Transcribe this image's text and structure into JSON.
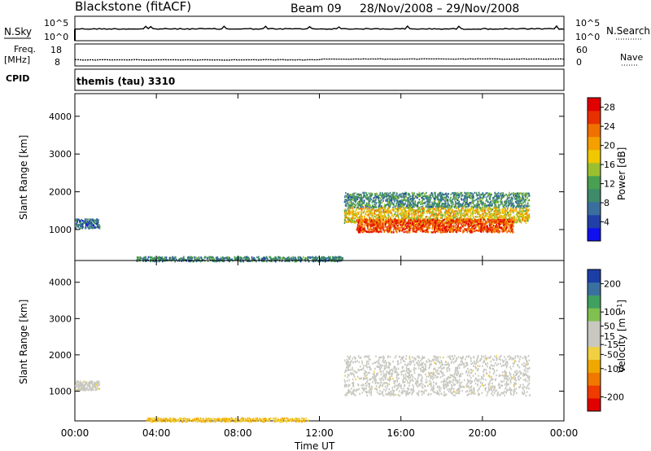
{
  "header": {
    "station": "Blackstone (fitACF)",
    "beam": "Beam 09",
    "date_range": "28/Nov/2008 – 29/Nov/2008"
  },
  "strips": {
    "nsky_label": "N.Sky",
    "nsky_top_tick": "10^5",
    "nsky_bottom_tick": "10^0",
    "nsearch_label": "N.Search",
    "nsearch_top_tick": "10^5",
    "nsearch_bottom_tick": "10^0",
    "freq_label_line1": "Freq.",
    "freq_label_line2": "[MHz]",
    "freq_ticks": [
      "18",
      "8"
    ],
    "nave_label": "Nave",
    "nave_ticks": [
      "60",
      "0"
    ],
    "cpid_label": "CPID",
    "cpid_value": "themis (tau) 3310"
  },
  "colors": {
    "power_scale": [
      "#1010ee",
      "#2040a8",
      "#3a6e9e",
      "#3e8a6a",
      "#48a050",
      "#9ac030",
      "#f0c800",
      "#f4a000",
      "#f07000",
      "#e83000",
      "#e00000"
    ],
    "velocity_scale": [
      "#e00000",
      "#f03a00",
      "#f07800",
      "#f0a800",
      "#f0d040",
      "#c8c8c0",
      "#c8c8c0",
      "#80c050",
      "#40a060",
      "#3a70a0",
      "#1c3ea6"
    ],
    "ground_scatter": "#c8c8c0"
  },
  "chart_data": [
    {
      "type": "heatmap",
      "title": "Power",
      "xlabel": "",
      "ylabel": "Slant Range [km]",
      "xlim": [
        "00:00",
        "00:00"
      ],
      "x_ticks": [
        "00:00",
        "04:00",
        "08:00",
        "12:00",
        "16:00",
        "20:00",
        "00:00"
      ],
      "ylim": [
        180,
        4600
      ],
      "y_ticks": [
        1000,
        2000,
        3000,
        4000
      ],
      "colorbar": {
        "label": "Power [dB]",
        "ticks": [
          4,
          8,
          12,
          16,
          20,
          24,
          28
        ],
        "range": [
          0,
          30
        ]
      },
      "regions": [
        {
          "t_start": 0.0,
          "t_end": 1.2,
          "range_min": 1050,
          "range_max": 1300,
          "typical_value": 7
        },
        {
          "t_start": 3.0,
          "t_end": 13.2,
          "range_min": 180,
          "range_max": 300,
          "typical_value": 9
        },
        {
          "t_start": 13.2,
          "t_end": 22.3,
          "range_min": 1600,
          "range_max": 2000,
          "typical_value": 10
        },
        {
          "t_start": 13.2,
          "t_end": 22.3,
          "range_min": 1200,
          "range_max": 1600,
          "typical_value": 18
        },
        {
          "t_start": 13.8,
          "t_end": 21.5,
          "range_min": 950,
          "range_max": 1300,
          "typical_value": 25
        }
      ]
    },
    {
      "type": "heatmap",
      "title": "Velocity",
      "xlabel": "Time UT",
      "ylabel": "Slant Range [km]",
      "xlim": [
        "00:00",
        "00:00"
      ],
      "x_ticks": [
        "00:00",
        "04:00",
        "08:00",
        "12:00",
        "16:00",
        "20:00",
        "00:00"
      ],
      "ylim": [
        180,
        4600
      ],
      "y_ticks": [
        1000,
        2000,
        3000,
        4000
      ],
      "colorbar": {
        "label": "Velocity [m s-1]",
        "ticks": [
          200,
          100,
          50,
          15,
          -15,
          -50,
          -100,
          -200
        ],
        "range": [
          -250,
          250
        ]
      },
      "regions": [
        {
          "t_start": 0.0,
          "t_end": 1.2,
          "range_min": 1050,
          "range_max": 1300,
          "typical_value": 0
        },
        {
          "t_start": 3.5,
          "t_end": 11.5,
          "range_min": 180,
          "range_max": 280,
          "typical_value": -60
        },
        {
          "t_start": 13.2,
          "t_end": 22.3,
          "range_min": 900,
          "range_max": 2000,
          "typical_value": 0
        }
      ]
    }
  ]
}
